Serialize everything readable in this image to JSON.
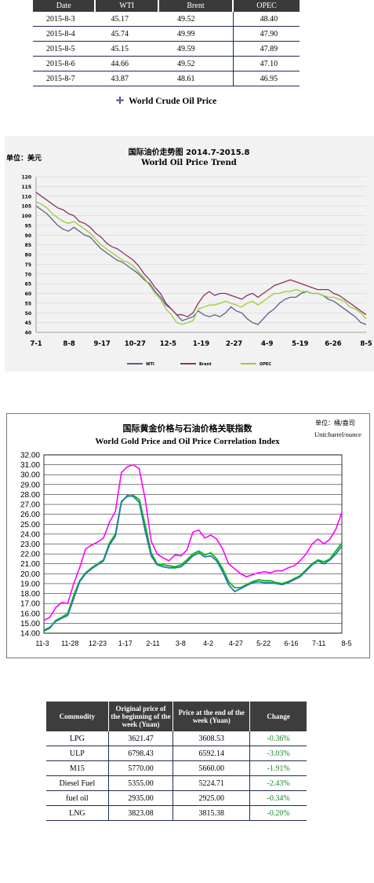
{
  "price_table": {
    "headers": [
      "Date",
      "WTI",
      "Brent",
      "OPEC"
    ],
    "rows": [
      [
        "2015-8-3",
        "45.17",
        "49.52",
        "48.40"
      ],
      [
        "2015-8-4",
        "45.74",
        "49.99",
        "47.90"
      ],
      [
        "2015-8-5",
        "45.15",
        "49.59",
        "47.89"
      ],
      [
        "2015-8-6",
        "44.66",
        "49.52",
        "47.10"
      ],
      [
        "2015-8-7",
        "43.87",
        "48.61",
        "46.95"
      ]
    ],
    "legend_label": "World Crude Oil Price"
  },
  "chart_data": [
    {
      "type": "line",
      "title": "国际油价走势图 2014.7-2015.8",
      "subtitle": "World Oil Price Trend",
      "unit_label": "单位：美元",
      "ylim": [
        40,
        120
      ],
      "yticks": [
        40,
        45,
        50,
        55,
        60,
        65,
        70,
        75,
        80,
        85,
        90,
        95,
        100,
        105,
        110,
        115,
        120
      ],
      "xticks": [
        "7-1",
        "8-8",
        "9-17",
        "10-27",
        "12-5",
        "1-19",
        "2-27",
        "4-9",
        "5-19",
        "6-26",
        "8-5"
      ],
      "grid": true,
      "legend_position": "bottom",
      "series": [
        {
          "name": "WTI",
          "color": "#5a5f8c",
          "values": [
            105,
            103,
            101,
            98,
            95,
            93,
            92,
            94,
            92,
            90,
            89,
            86,
            83,
            81,
            79,
            77,
            76,
            74,
            72,
            70,
            67,
            65,
            61,
            58,
            54,
            52,
            49,
            46,
            47,
            48,
            51,
            49,
            48,
            49,
            48,
            50,
            53,
            51,
            50,
            47,
            45,
            44,
            47,
            50,
            52,
            55,
            57,
            58,
            58,
            60,
            61,
            60,
            60,
            59,
            57,
            56,
            54,
            52,
            50,
            48,
            45,
            44
          ]
        },
        {
          "name": "Brent",
          "color": "#8c3364",
          "values": [
            112,
            110,
            108,
            106,
            104,
            103,
            101,
            100,
            97,
            96,
            94,
            91,
            89,
            86,
            84,
            83,
            81,
            79,
            77,
            74,
            70,
            67,
            63,
            60,
            55,
            52,
            49,
            49,
            48,
            50,
            55,
            59,
            61,
            59,
            60,
            60,
            59,
            58,
            57,
            59,
            60,
            58,
            60,
            62,
            64,
            65,
            66,
            67,
            66,
            65,
            64,
            63,
            62,
            62,
            62,
            60,
            59,
            57,
            55,
            53,
            51,
            49
          ]
        },
        {
          "name": "OPEC",
          "color": "#9acd32",
          "values": [
            107,
            106,
            104,
            101,
            99,
            97,
            96,
            97,
            95,
            93,
            91,
            88,
            85,
            83,
            81,
            79,
            77,
            76,
            74,
            71,
            68,
            64,
            60,
            57,
            52,
            49,
            45,
            44,
            45,
            46,
            52,
            53,
            54,
            54,
            55,
            56,
            55,
            54,
            53,
            55,
            56,
            54,
            56,
            58,
            60,
            60,
            61,
            61,
            62,
            61,
            61,
            60,
            60,
            59,
            58,
            58,
            57,
            56,
            53,
            52,
            50,
            47
          ]
        }
      ]
    },
    {
      "type": "line",
      "title": "国际黄金价格与石油价格关联指数",
      "subtitle": "World Gold Price and Oil Price Correlation Index",
      "unit_label": "单位：桶/盎司",
      "unit_label_en": "Unit:barrel/ounce",
      "ylim": [
        14,
        32
      ],
      "yticks": [
        "14.00",
        "15.00",
        "16.00",
        "17.00",
        "18.00",
        "19.00",
        "20.00",
        "21.00",
        "22.00",
        "23.00",
        "24.00",
        "25.00",
        "26.00",
        "27.00",
        "28.00",
        "29.00",
        "30.00",
        "31.00",
        "32.00"
      ],
      "xticks": [
        "11-3",
        "11-28",
        "12-23",
        "1-17",
        "2-11",
        "3-8",
        "4-2",
        "4-27",
        "5-22",
        "6-16",
        "7-11",
        "8-5"
      ],
      "grid": true,
      "series": [
        {
          "color": "#ff00ff",
          "values": [
            15.3,
            15.6,
            16.6,
            17.1,
            17.0,
            19.0,
            20.6,
            22.5,
            22.9,
            23.2,
            23.6,
            25.2,
            26.3,
            30.2,
            30.8,
            31.0,
            30.6,
            27.5,
            23.3,
            22.0,
            21.6,
            21.3,
            21.9,
            21.8,
            22.4,
            24.2,
            24.4,
            23.6,
            23.9,
            23.5,
            22.5,
            21.0,
            20.5,
            20.0,
            19.7,
            19.9,
            20.1,
            20.2,
            20.1,
            20.3,
            20.3,
            20.6,
            20.8,
            21.3,
            22.0,
            23.0,
            23.5,
            23.0,
            23.5,
            24.5,
            26.2
          ]
        },
        {
          "color": "#00c000",
          "values": [
            14.2,
            14.5,
            15.3,
            15.6,
            16.0,
            17.8,
            19.3,
            20.1,
            20.6,
            21.0,
            21.4,
            23.1,
            24.0,
            27.3,
            27.8,
            27.9,
            27.5,
            24.9,
            22.1,
            21.0,
            20.9,
            20.8,
            20.7,
            20.9,
            21.4,
            22.0,
            22.3,
            21.9,
            22.1,
            21.5,
            20.5,
            19.2,
            18.6,
            18.6,
            18.9,
            19.2,
            19.4,
            19.3,
            19.3,
            19.1,
            19.0,
            19.2,
            19.5,
            19.8,
            20.4,
            21.0,
            21.4,
            21.2,
            21.5,
            22.3,
            23.1
          ]
        },
        {
          "color": "#2a7ab0",
          "values": [
            14.3,
            14.6,
            15.2,
            15.5,
            15.8,
            17.5,
            19.2,
            20.0,
            20.5,
            20.9,
            21.3,
            22.9,
            23.8,
            27.2,
            27.9,
            27.8,
            27.2,
            24.3,
            21.8,
            20.9,
            20.7,
            20.6,
            20.6,
            20.7,
            21.2,
            21.8,
            22.1,
            21.7,
            21.8,
            21.3,
            20.2,
            18.9,
            18.2,
            18.5,
            18.8,
            19.1,
            19.2,
            19.1,
            19.1,
            19.0,
            18.9,
            19.1,
            19.4,
            19.7,
            20.3,
            20.9,
            21.3,
            21.0,
            21.4,
            22.0,
            22.8
          ]
        }
      ]
    }
  ],
  "commodity_table": {
    "headers": [
      "Commodity",
      "Original price of the beginning of the week (Yuan)",
      "Price at the end of the week (Yuan)",
      "Change"
    ],
    "rows": [
      [
        "LPG",
        "3621.47",
        "3608.53",
        "-0.36%"
      ],
      [
        "ULP",
        "6798.43",
        "6592.14",
        "-3.03%"
      ],
      [
        "M15",
        "5770.00",
        "5660.00",
        "-1.91%"
      ],
      [
        "Diesel Fuel",
        "5355.00",
        "5224.71",
        "-2.43%"
      ],
      [
        "fuel oil",
        "2935.00",
        "2925.00",
        "-0.34%"
      ],
      [
        "LNG",
        "3823.08",
        "3815.38",
        "-0.20%"
      ]
    ]
  }
}
